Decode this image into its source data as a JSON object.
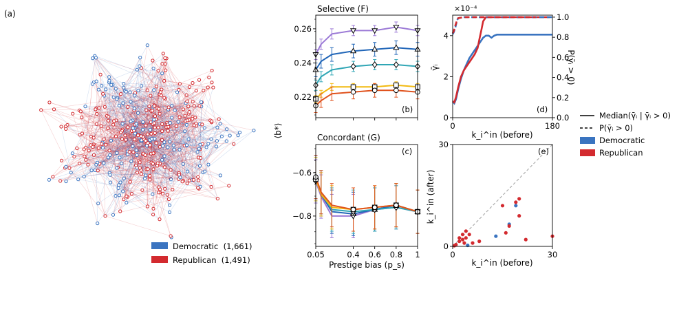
{
  "figure": {
    "panel_a": {
      "label": "(a)",
      "legend": [
        {
          "label": "Democratic  (1,661)",
          "color": "#3a74c0"
        },
        {
          "label": "Republican  (1,491)",
          "color": "#d32a2f"
        }
      ]
    },
    "shared_ylabel": "⟨b*⟩",
    "shared_xlabel": "Prestige bias (p_s)",
    "right_legend": {
      "median_label": "Median(γ̄ᵢ | γ̄ᵢ > 0)",
      "prob_label": "P(γ̄ᵢ > 0)",
      "dem_label": "Democratic",
      "rep_label": "Republican"
    }
  },
  "colors": {
    "democratic": "#3a74c0",
    "republican": "#d32a2f",
    "series": [
      "#9b79d6",
      "#2166b8",
      "#2fa6b5",
      "#f2b90f",
      "#e0531e"
    ]
  },
  "chart_data": [
    {
      "id": "b",
      "type": "line",
      "title": "Selective (F)",
      "panel_label": "(b)",
      "x": [
        0.05,
        0.1,
        0.2,
        0.4,
        0.6,
        0.8,
        1.0
      ],
      "xticks": [
        "0.05",
        "0.4",
        "0.6",
        "0.8",
        "1"
      ],
      "xlim": [
        0.05,
        1.0
      ],
      "ylim": [
        0.208,
        0.268
      ],
      "yticks": [
        0.22,
        0.24,
        0.26
      ],
      "series": [
        {
          "marker": "triangle-down",
          "values": [
            0.245,
            0.251,
            0.257,
            0.259,
            0.259,
            0.261,
            0.259
          ],
          "err": 0.003
        },
        {
          "marker": "triangle-up",
          "values": [
            0.236,
            0.241,
            0.245,
            0.247,
            0.248,
            0.249,
            0.248
          ],
          "err": 0.004
        },
        {
          "marker": "diamond",
          "values": [
            0.227,
            0.232,
            0.236,
            0.238,
            0.239,
            0.239,
            0.238
          ],
          "err": 0.003
        },
        {
          "marker": "square",
          "values": [
            0.219,
            0.222,
            0.226,
            0.226,
            0.226,
            0.227,
            0.226
          ],
          "err": 0.002
        },
        {
          "marker": "circle",
          "values": [
            0.215,
            0.218,
            0.222,
            0.223,
            0.224,
            0.224,
            0.223
          ],
          "err": 0.004
        }
      ]
    },
    {
      "id": "c",
      "type": "line",
      "title": "Concordant (G)",
      "panel_label": "(c)",
      "x": [
        0.05,
        0.1,
        0.2,
        0.4,
        0.6,
        0.8,
        1.0
      ],
      "xticks": [
        "0.05",
        "0.4",
        "0.6",
        "0.8",
        "1"
      ],
      "xlim": [
        0.05,
        1.0
      ],
      "ylim": [
        -0.94,
        -0.47
      ],
      "yticks": [
        -0.6,
        -0.8
      ],
      "series": [
        {
          "marker": "triangle-down",
          "values": [
            -0.64,
            -0.71,
            -0.8,
            -0.8,
            -0.77,
            -0.76,
            -0.78
          ],
          "err": 0.1
        },
        {
          "marker": "triangle-up",
          "values": [
            -0.62,
            -0.7,
            -0.78,
            -0.79,
            -0.77,
            -0.75,
            -0.78
          ],
          "err": 0.1
        },
        {
          "marker": "diamond",
          "values": [
            -0.63,
            -0.69,
            -0.77,
            -0.78,
            -0.77,
            -0.76,
            -0.78
          ],
          "err": 0.1
        },
        {
          "marker": "square",
          "values": [
            -0.63,
            -0.7,
            -0.76,
            -0.77,
            -0.76,
            -0.75,
            -0.78
          ],
          "err": 0.1
        },
        {
          "marker": "circle",
          "values": [
            -0.62,
            -0.69,
            -0.75,
            -0.77,
            -0.76,
            -0.75,
            -0.78
          ],
          "err": 0.1
        }
      ]
    },
    {
      "id": "d",
      "type": "line",
      "panel_label": "(d)",
      "xlabel": "k_i^in (before)",
      "ylabel_left": "γ̄ᵢ",
      "ylabel_right": "P(γ̄ᵢ > 0)",
      "scale_label": "×10⁻⁴",
      "xlim": [
        0,
        180
      ],
      "xticks": [
        0,
        180
      ],
      "ylim_left": [
        0,
        5
      ],
      "yticks_left": [
        0,
        2,
        4
      ],
      "ylim_right": [
        0,
        1.02
      ],
      "yticks_right": [
        "0.0",
        "0.2",
        "0.4",
        "0.6",
        "0.8",
        "1.0"
      ],
      "series": [
        {
          "name": "Democratic",
          "stat": "median",
          "x": [
            0,
            3,
            6,
            10,
            15,
            20,
            25,
            30,
            35,
            40,
            45,
            50,
            55,
            60,
            65,
            70,
            75,
            80,
            90,
            100,
            120,
            140,
            160,
            180
          ],
          "y": [
            0.8,
            0.7,
            0.9,
            1.4,
            1.9,
            2.3,
            2.6,
            2.9,
            3.1,
            3.3,
            3.5,
            3.7,
            3.9,
            4.0,
            4.0,
            3.9,
            4.0,
            4.05,
            4.05,
            4.05,
            4.05,
            4.05,
            4.05,
            4.05
          ]
        },
        {
          "name": "Republican",
          "stat": "median",
          "x": [
            0,
            3,
            6,
            10,
            15,
            20,
            25,
            30,
            35,
            40,
            45,
            48,
            52,
            55,
            60,
            70,
            90,
            120,
            150,
            175
          ],
          "y": [
            0.8,
            0.75,
            1.0,
            1.5,
            2.0,
            2.3,
            2.5,
            2.7,
            2.9,
            3.1,
            3.4,
            3.8,
            4.3,
            4.7,
            4.9,
            4.9,
            4.9,
            4.9,
            4.9,
            4.9
          ]
        },
        {
          "name": "Democratic",
          "stat": "prob",
          "x": [
            0,
            2,
            5,
            8,
            10,
            20,
            40,
            80,
            120,
            160,
            180
          ],
          "y": [
            0.83,
            0.85,
            0.9,
            0.97,
            0.99,
            1.0,
            1.0,
            1.0,
            1.0,
            1.0,
            1.0
          ]
        },
        {
          "name": "Republican",
          "stat": "prob",
          "x": [
            0,
            2,
            5,
            8,
            10,
            20,
            40,
            80,
            120,
            150
          ],
          "y": [
            0.84,
            0.86,
            0.92,
            0.97,
            0.99,
            1.0,
            1.0,
            1.0,
            1.0,
            1.0
          ]
        }
      ]
    },
    {
      "id": "e",
      "type": "scatter",
      "panel_label": "(e)",
      "xlabel": "k_i^in (before)",
      "ylabel": "k_i^in (after)",
      "xlim": [
        0,
        30
      ],
      "ylim": [
        0,
        30
      ],
      "xticks": [
        0,
        30
      ],
      "yticks": [
        0,
        30
      ],
      "diagonal": true,
      "series": [
        {
          "name": "Democratic",
          "points": [
            [
              4.5,
              0.3
            ],
            [
              13,
              3
            ],
            [
              17,
              6.5
            ],
            [
              19,
              12
            ]
          ]
        },
        {
          "name": "Republican",
          "points": [
            [
              0.5,
              0.2
            ],
            [
              1,
              0.5
            ],
            [
              2,
              1.5
            ],
            [
              2,
              2.5
            ],
            [
              3,
              3.5
            ],
            [
              3,
              2
            ],
            [
              3.5,
              1
            ],
            [
              4,
              4.5
            ],
            [
              4,
              2.5
            ],
            [
              5,
              3.5
            ],
            [
              6,
              1
            ],
            [
              8,
              1.5
            ],
            [
              15,
              12
            ],
            [
              16,
              4
            ],
            [
              17,
              6
            ],
            [
              19,
              13
            ],
            [
              20,
              9
            ],
            [
              20,
              14
            ],
            [
              22,
              2
            ],
            [
              30,
              3
            ]
          ]
        }
      ]
    }
  ]
}
